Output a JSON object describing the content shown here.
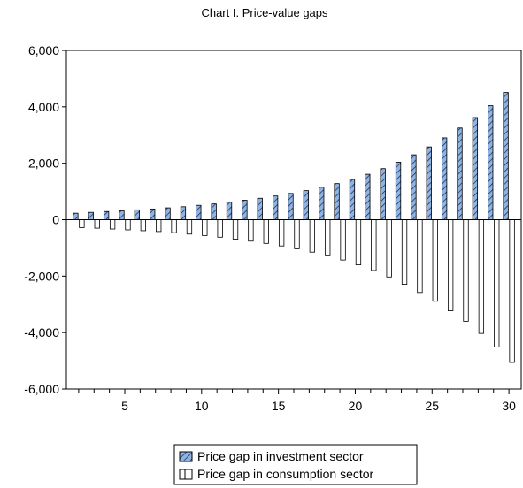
{
  "chart_data": {
    "type": "bar",
    "title": "Chart I. Price-value gaps",
    "xlabel": "",
    "ylabel": "",
    "x": [
      2,
      3,
      4,
      5,
      6,
      7,
      8,
      9,
      10,
      11,
      12,
      13,
      14,
      15,
      16,
      17,
      18,
      19,
      20,
      21,
      22,
      23,
      24,
      25,
      26,
      27,
      28,
      29,
      30
    ],
    "xticks": [
      5,
      10,
      15,
      20,
      25,
      30
    ],
    "ylim": [
      -6000,
      6000
    ],
    "yticks": [
      -6000,
      -4000,
      -2000,
      0,
      2000,
      4000,
      6000
    ],
    "ytick_labels": [
      "-6,000",
      "-4,000",
      "-2,000",
      "0",
      "2,000",
      "4,000",
      "6,000"
    ],
    "grid": false,
    "legend_position": "bottom-center",
    "series": [
      {
        "name": "Price gap in investment sector",
        "color": "#8db4e2",
        "pattern": "diagonal-hatch",
        "values": [
          230,
          260,
          290,
          320,
          350,
          380,
          420,
          460,
          510,
          560,
          620,
          690,
          760,
          840,
          930,
          1030,
          1150,
          1280,
          1430,
          1610,
          1810,
          2040,
          2300,
          2580,
          2900,
          3250,
          3620,
          4040,
          4510
        ]
      },
      {
        "name": "Price gap in consumption sector",
        "color": "#ffffff",
        "pattern": "none",
        "values": [
          -280,
          -300,
          -330,
          -360,
          -390,
          -420,
          -460,
          -510,
          -560,
          -620,
          -690,
          -760,
          -840,
          -930,
          -1030,
          -1150,
          -1280,
          -1430,
          -1600,
          -1800,
          -2030,
          -2290,
          -2580,
          -2890,
          -3230,
          -3600,
          -4030,
          -4510,
          -5060
        ]
      }
    ]
  }
}
